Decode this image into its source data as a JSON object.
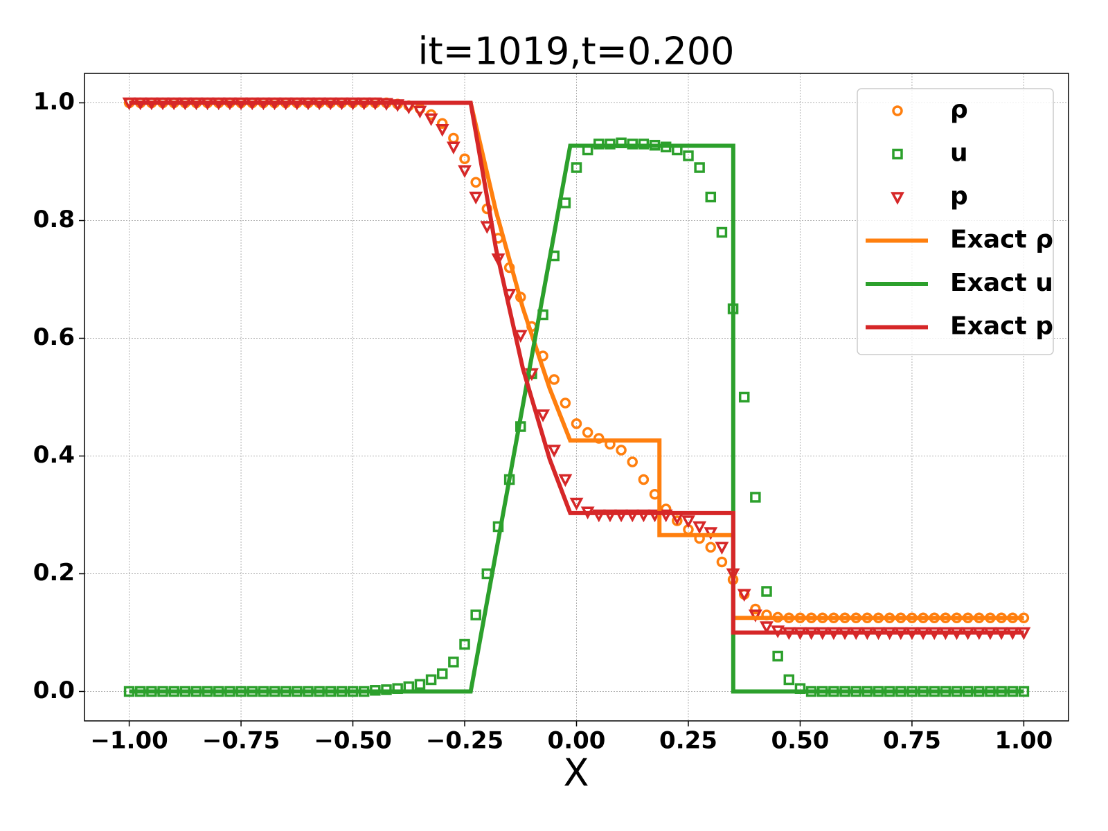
{
  "chart_data": {
    "type": "scatter",
    "title": "it=1019,t=0.200",
    "xlabel": "X",
    "xlim": [
      -1.1,
      1.1
    ],
    "ylim": [
      -0.05,
      1.05
    ],
    "xticks": [
      {
        "value": -1,
        "label": "−1.00"
      },
      {
        "value": -0.75,
        "label": "−0.75"
      },
      {
        "value": -0.5,
        "label": "−0.50"
      },
      {
        "value": -0.25,
        "label": "−0.25"
      },
      {
        "value": 0,
        "label": "0.00"
      },
      {
        "value": 0.25,
        "label": "0.25"
      },
      {
        "value": 0.5,
        "label": "0.50"
      },
      {
        "value": 0.75,
        "label": "0.75"
      },
      {
        "value": 1,
        "label": "1.00"
      }
    ],
    "yticks": [
      {
        "value": 0,
        "label": "0.0"
      },
      {
        "value": 0.2,
        "label": "0.2"
      },
      {
        "value": 0.4,
        "label": "0.4"
      },
      {
        "value": 0.6,
        "label": "0.6"
      },
      {
        "value": 0.8,
        "label": "0.8"
      },
      {
        "value": 1,
        "label": "1.0"
      }
    ],
    "grid": true,
    "legend": "upper right",
    "x": [
      -1,
      -0.975,
      -0.95,
      -0.925,
      -0.9,
      -0.875,
      -0.85,
      -0.825,
      -0.8,
      -0.775,
      -0.75,
      -0.725,
      -0.7,
      -0.675,
      -0.65,
      -0.625,
      -0.6,
      -0.575,
      -0.55,
      -0.525,
      -0.5,
      -0.475,
      -0.45,
      -0.425,
      -0.4,
      -0.375,
      -0.35,
      -0.325,
      -0.3,
      -0.275,
      -0.25,
      -0.225,
      -0.2,
      -0.175,
      -0.15,
      -0.125,
      -0.1,
      -0.075,
      -0.05,
      -0.025,
      0,
      0.025,
      0.05,
      0.075,
      0.1,
      0.125,
      0.15,
      0.175,
      0.2,
      0.225,
      0.25,
      0.275,
      0.3,
      0.325,
      0.35,
      0.375,
      0.4,
      0.425,
      0.45,
      0.475,
      0.5,
      0.525,
      0.55,
      0.575,
      0.6,
      0.625,
      0.65,
      0.675,
      0.7,
      0.725,
      0.75,
      0.775,
      0.8,
      0.825,
      0.85,
      0.875,
      0.9,
      0.925,
      0.95,
      0.975,
      1
    ],
    "series": [
      {
        "name": "ρ",
        "marker": "circle",
        "color": "#ff7f0e",
        "values": [
          1,
          1,
          1,
          1,
          1,
          1,
          1,
          1,
          1,
          1,
          1,
          1,
          1,
          1,
          1,
          1,
          1,
          1,
          1,
          1,
          1,
          1,
          1,
          1,
          0.998,
          0.995,
          0.99,
          0.98,
          0.965,
          0.94,
          0.905,
          0.865,
          0.82,
          0.77,
          0.72,
          0.67,
          0.62,
          0.57,
          0.53,
          0.49,
          0.455,
          0.44,
          0.43,
          0.42,
          0.41,
          0.39,
          0.36,
          0.335,
          0.31,
          0.29,
          0.275,
          0.26,
          0.245,
          0.22,
          0.19,
          0.165,
          0.14,
          0.13,
          0.126,
          0.125,
          0.125,
          0.125,
          0.125,
          0.125,
          0.125,
          0.125,
          0.125,
          0.125,
          0.125,
          0.125,
          0.125,
          0.125,
          0.125,
          0.125,
          0.125,
          0.125,
          0.125,
          0.125,
          0.125,
          0.125,
          0.125
        ]
      },
      {
        "name": "u",
        "marker": "square",
        "color": "#2ca02c",
        "values": [
          0,
          0,
          0,
          0,
          0,
          0,
          0,
          0,
          0,
          0,
          0,
          0,
          0,
          0,
          0,
          0,
          0,
          0,
          0,
          0,
          0,
          0,
          0.002,
          0.003,
          0.005,
          0.008,
          0.012,
          0.02,
          0.03,
          0.05,
          0.08,
          0.13,
          0.2,
          0.28,
          0.36,
          0.45,
          0.54,
          0.64,
          0.74,
          0.83,
          0.89,
          0.92,
          0.93,
          0.93,
          0.932,
          0.93,
          0.93,
          0.928,
          0.925,
          0.92,
          0.91,
          0.89,
          0.84,
          0.78,
          0.65,
          0.5,
          0.33,
          0.17,
          0.06,
          0.02,
          0.005,
          0,
          0,
          0,
          0,
          0,
          0,
          0,
          0,
          0,
          0,
          0,
          0,
          0,
          0,
          0,
          0,
          0,
          0,
          0,
          0
        ]
      },
      {
        "name": "p",
        "marker": "triangle",
        "color": "#d62728",
        "values": [
          1,
          1,
          1,
          1,
          1,
          1,
          1,
          1,
          1,
          1,
          1,
          1,
          1,
          1,
          1,
          1,
          1,
          1,
          1,
          1,
          1,
          1,
          1,
          0.999,
          0.997,
          0.993,
          0.986,
          0.973,
          0.955,
          0.925,
          0.885,
          0.84,
          0.79,
          0.735,
          0.675,
          0.605,
          0.54,
          0.47,
          0.41,
          0.36,
          0.32,
          0.305,
          0.3,
          0.3,
          0.3,
          0.3,
          0.3,
          0.3,
          0.3,
          0.295,
          0.29,
          0.28,
          0.27,
          0.245,
          0.2,
          0.165,
          0.13,
          0.11,
          0.103,
          0.1,
          0.1,
          0.1,
          0.1,
          0.1,
          0.1,
          0.1,
          0.1,
          0.1,
          0.1,
          0.1,
          0.1,
          0.1,
          0.1,
          0.1,
          0.1,
          0.1,
          0.1,
          0.1,
          0.1,
          0.1,
          0.1
        ]
      },
      {
        "name": "Exact ρ",
        "marker": "line",
        "color": "#ff7f0e",
        "x": [
          -1,
          -0.2366,
          -0.18,
          -0.12,
          -0.06,
          -0.0141,
          0.1854,
          0.1854,
          0.3504,
          0.3504,
          1
        ],
        "values": [
          1,
          1,
          0.816,
          0.6516,
          0.5147,
          0.4263,
          0.4263,
          0.2656,
          0.2656,
          0.125,
          0.125
        ]
      },
      {
        "name": "Exact u",
        "marker": "line",
        "color": "#2ca02c",
        "x": [
          -1,
          -0.2366,
          -0.18,
          -0.12,
          -0.06,
          -0.0141,
          0.3504,
          0.3504,
          1
        ],
        "values": [
          0,
          0,
          0.236,
          0.486,
          0.736,
          0.927,
          0.927,
          0,
          0
        ]
      },
      {
        "name": "Exact p",
        "marker": "line",
        "color": "#d62728",
        "x": [
          -1,
          -0.2366,
          -0.18,
          -0.12,
          -0.06,
          -0.0141,
          0.3504,
          0.3504,
          1
        ],
        "values": [
          1,
          1,
          0.752,
          0.549,
          0.3946,
          0.3031,
          0.3031,
          0.1,
          0.1
        ]
      }
    ]
  }
}
